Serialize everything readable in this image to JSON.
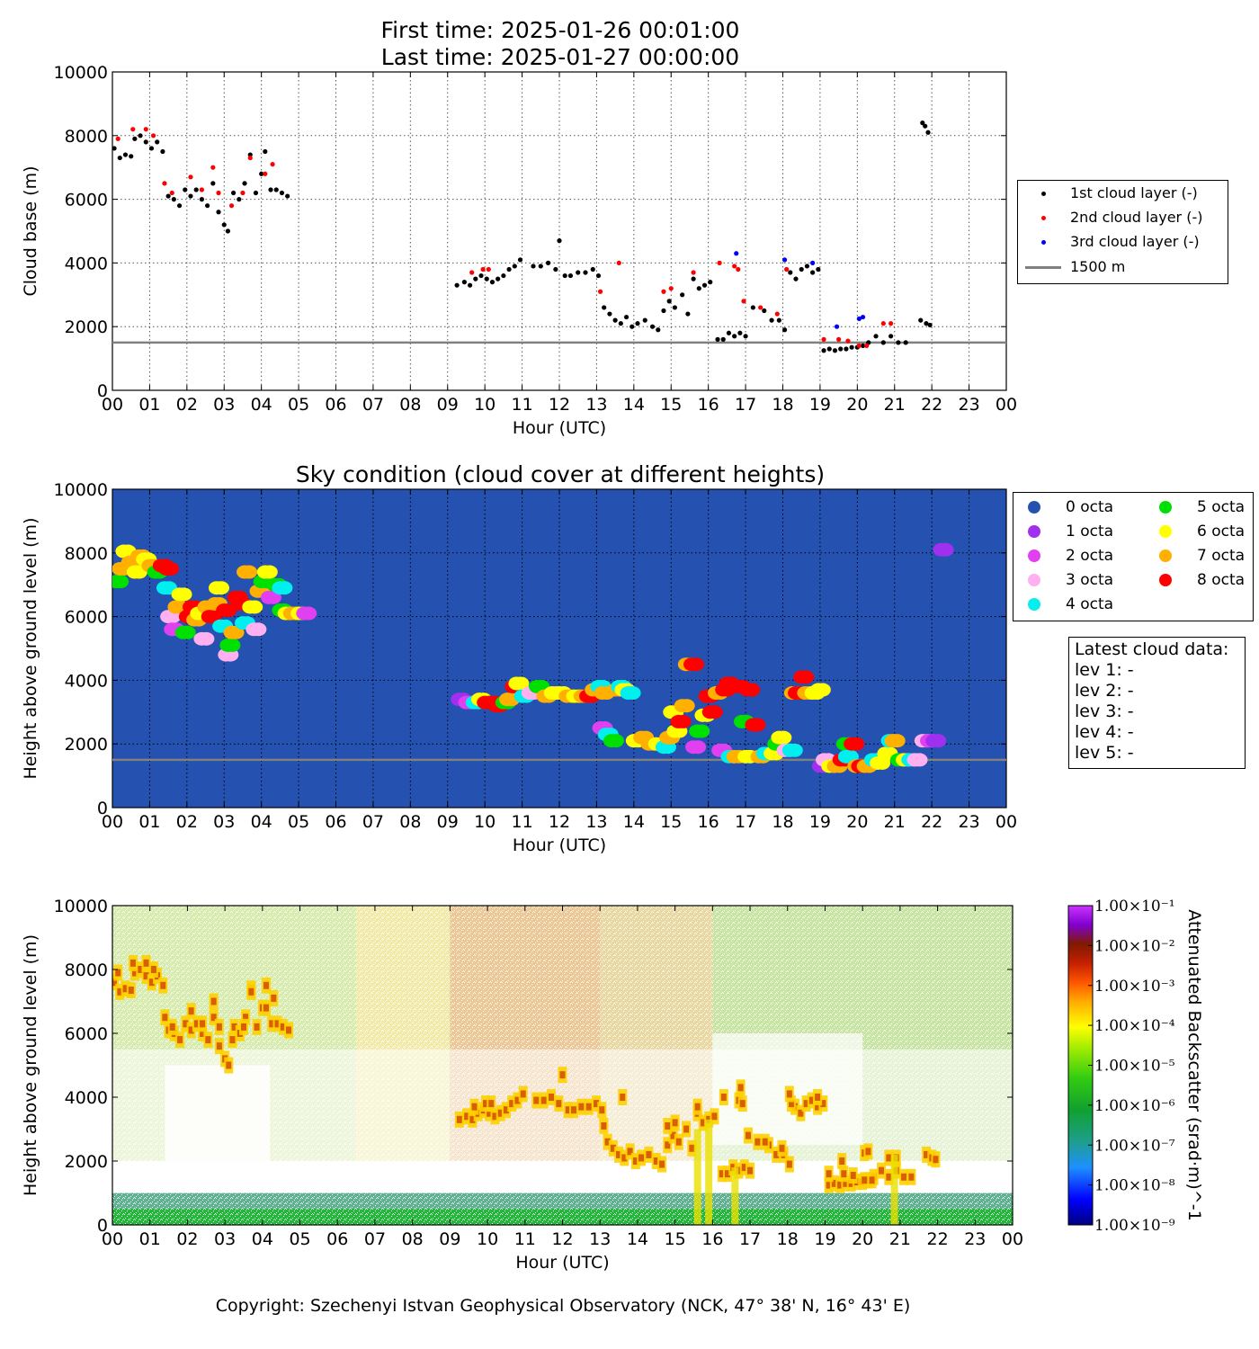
{
  "header": {
    "first_time": "First time: 2025-01-26 00:01:00",
    "last_time": "Last time: 2025-01-27 00:00:00"
  },
  "footer": {
    "copyright": "Copyright: Szechenyi Istvan Geophysical Observatory (NCK, 47° 38' N, 16° 43' E)"
  },
  "latest_cloud": {
    "title": "Latest cloud data:",
    "lines": [
      "lev 1: -",
      "lev 2: -",
      "lev 3: -",
      "lev 4: -",
      "lev 5: -"
    ]
  },
  "colors": {
    "first_layer": "#000000",
    "second_layer": "#ff0000",
    "third_layer": "#0000ff",
    "reference_line": "#808080",
    "sky_background": "#2552b0",
    "octa": [
      "#2552b0",
      "#a030f0",
      "#e040f0",
      "#ffb0f0",
      "#00f0f0",
      "#00e000",
      "#ffff00",
      "#ffb000",
      "#ff0000"
    ]
  },
  "chart_data": [
    {
      "type": "scatter",
      "xlabel": "Hour (UTC)",
      "ylabel": "Cloud base (m)",
      "xlim": [
        0,
        24
      ],
      "ylim": [
        0,
        10000
      ],
      "grid": true,
      "legend_position": "outside-right",
      "xticklabels": [
        "00",
        "01",
        "02",
        "03",
        "04",
        "05",
        "06",
        "07",
        "08",
        "09",
        "10",
        "11",
        "12",
        "13",
        "14",
        "15",
        "16",
        "17",
        "18",
        "19",
        "20",
        "21",
        "22",
        "23",
        "00"
      ],
      "yticks": [
        0,
        2000,
        4000,
        6000,
        8000,
        10000
      ],
      "reference_line": {
        "label": "1500 m",
        "y": 1500
      },
      "series": [
        {
          "name": "1st cloud layer (-)",
          "color": "#000000",
          "x": [
            0.05,
            0.2,
            0.35,
            0.5,
            0.6,
            0.75,
            0.9,
            1.05,
            1.2,
            1.35,
            1.5,
            1.65,
            1.8,
            1.95,
            2.1,
            2.25,
            2.4,
            2.55,
            2.7,
            2.85,
            3.0,
            3.1,
            3.25,
            3.4,
            3.55,
            3.7,
            3.85,
            4.0,
            4.1,
            4.25,
            4.4,
            4.55,
            4.7,
            9.25,
            9.45,
            9.6,
            9.75,
            9.9,
            10.05,
            10.2,
            10.35,
            10.5,
            10.65,
            10.8,
            10.95,
            11.3,
            11.5,
            11.7,
            11.9,
            12.0,
            12.15,
            12.3,
            12.5,
            12.7,
            12.9,
            13.05,
            13.2,
            13.35,
            13.5,
            13.65,
            13.8,
            13.95,
            14.1,
            14.3,
            14.5,
            14.65,
            14.8,
            14.95,
            15.1,
            15.3,
            15.45,
            15.6,
            15.75,
            15.9,
            16.05,
            16.25,
            16.4,
            16.55,
            16.7,
            16.85,
            17.0,
            17.2,
            17.5,
            17.7,
            17.9,
            18.05,
            18.2,
            18.35,
            18.5,
            18.65,
            18.8,
            18.95,
            19.1,
            19.25,
            19.4,
            19.55,
            19.7,
            19.85,
            20.0,
            20.15,
            20.3,
            20.5,
            20.7,
            20.9,
            21.1,
            21.3,
            21.7,
            21.85,
            21.95
          ],
          "values": [
            7600,
            7300,
            7400,
            7350,
            7900,
            8000,
            7800,
            7600,
            7800,
            7500,
            6100,
            6000,
            5800,
            6300,
            6100,
            6300,
            6000,
            5800,
            6500,
            5600,
            5200,
            5000,
            6200,
            6000,
            6500,
            7400,
            6200,
            6800,
            7500,
            6300,
            6300,
            6200,
            6100,
            3300,
            3400,
            3300,
            3500,
            3600,
            3500,
            3400,
            3500,
            3600,
            3800,
            3900,
            4100,
            3900,
            3900,
            4000,
            3800,
            4700,
            3600,
            3600,
            3700,
            3700,
            3800,
            3600,
            2600,
            2400,
            2200,
            2100,
            2300,
            2000,
            2100,
            2200,
            2000,
            1900,
            2500,
            2800,
            2600,
            3000,
            2400,
            3500,
            3200,
            3300,
            3400,
            1600,
            1600,
            1800,
            1700,
            1800,
            1700,
            2600,
            2500,
            2200,
            2200,
            1900,
            3700,
            3500,
            3800,
            3900,
            3700,
            3800,
            1250,
            1300,
            1250,
            1300,
            1300,
            1350,
            1350,
            1400,
            1500,
            1700,
            1500,
            1700,
            1500,
            1500,
            2200,
            2100,
            2050
          ]
        },
        {
          "name": "2nd cloud layer (-)",
          "color": "#ff0000",
          "x": [
            0.15,
            0.55,
            0.9,
            1.1,
            1.4,
            1.6,
            2.1,
            2.4,
            2.7,
            2.85,
            3.2,
            3.5,
            3.7,
            4.1,
            4.3,
            9.65,
            9.95,
            10.1,
            13.1,
            13.6,
            14.8,
            15.0,
            15.6,
            16.3,
            16.7,
            16.8,
            16.95,
            17.4,
            17.85,
            18.1,
            19.1,
            19.5,
            19.75,
            20.05,
            20.25,
            20.7,
            20.9
          ],
          "values": [
            7900,
            8200,
            8200,
            8000,
            6500,
            6200,
            6700,
            6300,
            7000,
            6200,
            5800,
            6200,
            7300,
            6800,
            7100,
            3700,
            3800,
            3800,
            3100,
            4000,
            3100,
            3200,
            3700,
            4000,
            3900,
            3800,
            2800,
            2600,
            2400,
            3800,
            1600,
            1600,
            1550,
            1400,
            1400,
            2100,
            2100
          ]
        },
        {
          "name": "3rd cloud layer (-)",
          "color": "#0000ff",
          "x": [
            16.75,
            18.05,
            18.8,
            19.45,
            20.05,
            20.15
          ],
          "values": [
            4300,
            4100,
            4000,
            2000,
            2250,
            2300
          ]
        }
      ],
      "outlier_points": {
        "x": [
          21.75,
          21.82,
          21.9
        ],
        "values": [
          8400,
          8300,
          8100
        ]
      }
    },
    {
      "type": "scatter",
      "title": "Sky condition (cloud cover at different heights)",
      "xlabel": "Hour (UTC)",
      "ylabel": "Height above ground level (m)",
      "xlim": [
        0,
        24
      ],
      "ylim": [
        0,
        10000
      ],
      "grid": true,
      "legend_position": "outside-right",
      "xticklabels": [
        "00",
        "01",
        "02",
        "03",
        "04",
        "05",
        "06",
        "07",
        "08",
        "09",
        "10",
        "11",
        "12",
        "13",
        "14",
        "15",
        "16",
        "17",
        "18",
        "19",
        "20",
        "21",
        "22",
        "23",
        "00"
      ],
      "yticks": [
        0,
        2000,
        4000,
        6000,
        8000,
        10000
      ],
      "reference_line": {
        "y": 1500
      },
      "categories": [
        "0 octa",
        "1 octa",
        "2 octa",
        "3 octa",
        "4 octa",
        "5 octa",
        "6 octa",
        "7 octa",
        "8 octa"
      ],
      "points": [
        [
          0.1,
          7100,
          5
        ],
        [
          0.2,
          7500,
          7
        ],
        [
          0.3,
          8050,
          6
        ],
        [
          0.45,
          7700,
          7
        ],
        [
          0.6,
          7400,
          6
        ],
        [
          0.7,
          7900,
          7
        ],
        [
          0.85,
          7800,
          6
        ],
        [
          1.0,
          7600,
          7
        ],
        [
          1.15,
          7400,
          5
        ],
        [
          1.3,
          7600,
          8
        ],
        [
          1.45,
          7500,
          8
        ],
        [
          1.4,
          6900,
          4
        ],
        [
          1.5,
          6000,
          3
        ],
        [
          1.6,
          5600,
          2
        ],
        [
          1.7,
          6300,
          7
        ],
        [
          1.8,
          6700,
          6
        ],
        [
          1.9,
          5500,
          5
        ],
        [
          2.0,
          6000,
          8
        ],
        [
          2.1,
          6300,
          8
        ],
        [
          2.2,
          5900,
          7
        ],
        [
          2.3,
          6100,
          6
        ],
        [
          2.4,
          5300,
          3
        ],
        [
          2.5,
          6300,
          7
        ],
        [
          2.6,
          6000,
          8
        ],
        [
          2.75,
          6400,
          7
        ],
        [
          2.8,
          6900,
          6
        ],
        [
          2.9,
          5700,
          4
        ],
        [
          3.0,
          6200,
          8
        ],
        [
          3.05,
          4800,
          3
        ],
        [
          3.1,
          5100,
          5
        ],
        [
          3.2,
          5500,
          7
        ],
        [
          3.3,
          6600,
          8
        ],
        [
          3.4,
          6400,
          8
        ],
        [
          3.5,
          5800,
          4
        ],
        [
          3.55,
          7400,
          7
        ],
        [
          3.7,
          6300,
          6
        ],
        [
          3.8,
          5600,
          3
        ],
        [
          3.9,
          6800,
          7
        ],
        [
          4.0,
          7100,
          5
        ],
        [
          4.1,
          7400,
          6
        ],
        [
          4.2,
          6600,
          2
        ],
        [
          4.35,
          7000,
          5
        ],
        [
          4.5,
          6900,
          4
        ],
        [
          4.5,
          6200,
          5
        ],
        [
          4.65,
          6100,
          6
        ],
        [
          4.8,
          6100,
          7
        ],
        [
          5.0,
          6100,
          6
        ],
        [
          5.15,
          6100,
          2
        ],
        [
          9.3,
          3400,
          1
        ],
        [
          9.5,
          3300,
          2
        ],
        [
          9.7,
          3300,
          4
        ],
        [
          9.85,
          3400,
          6
        ],
        [
          10.0,
          3300,
          8
        ],
        [
          10.15,
          3300,
          8
        ],
        [
          10.3,
          3200,
          8
        ],
        [
          10.5,
          3300,
          5
        ],
        [
          10.6,
          3400,
          7
        ],
        [
          10.75,
          3800,
          8
        ],
        [
          10.85,
          3900,
          6
        ],
        [
          11.0,
          3500,
          4
        ],
        [
          11.2,
          3600,
          3
        ],
        [
          11.4,
          3800,
          5
        ],
        [
          11.6,
          3500,
          7
        ],
        [
          11.8,
          3600,
          6
        ],
        [
          12.0,
          3600,
          6
        ],
        [
          12.2,
          3500,
          7
        ],
        [
          12.4,
          3500,
          6
        ],
        [
          12.6,
          3500,
          7
        ],
        [
          12.75,
          3500,
          8
        ],
        [
          12.9,
          3700,
          7
        ],
        [
          13.05,
          3800,
          4
        ],
        [
          13.15,
          3600,
          7
        ],
        [
          13.1,
          2500,
          2
        ],
        [
          13.25,
          2300,
          4
        ],
        [
          13.4,
          2100,
          5
        ],
        [
          13.5,
          3700,
          7
        ],
        [
          13.6,
          3800,
          4
        ],
        [
          13.7,
          3700,
          6
        ],
        [
          13.85,
          3600,
          4
        ],
        [
          14.0,
          2100,
          6
        ],
        [
          14.2,
          2200,
          7
        ],
        [
          14.4,
          2000,
          7
        ],
        [
          14.6,
          2000,
          6
        ],
        [
          14.8,
          1900,
          4
        ],
        [
          14.9,
          2200,
          7
        ],
        [
          15.0,
          3000,
          6
        ],
        [
          15.1,
          2400,
          6
        ],
        [
          15.2,
          2700,
          8
        ],
        [
          15.3,
          3200,
          7
        ],
        [
          15.4,
          4500,
          7
        ],
        [
          15.55,
          4500,
          8
        ],
        [
          15.6,
          1900,
          2
        ],
        [
          15.7,
          2400,
          5
        ],
        [
          15.85,
          2900,
          6
        ],
        [
          15.95,
          3500,
          8
        ],
        [
          16.05,
          3000,
          8
        ],
        [
          16.2,
          3600,
          7
        ],
        [
          16.3,
          1800,
          2
        ],
        [
          16.4,
          3700,
          8
        ],
        [
          16.5,
          3900,
          8
        ],
        [
          16.55,
          1600,
          4
        ],
        [
          16.7,
          1600,
          7
        ],
        [
          16.8,
          3800,
          8
        ],
        [
          16.9,
          2700,
          5
        ],
        [
          17.0,
          1600,
          6
        ],
        [
          17.05,
          3700,
          8
        ],
        [
          17.2,
          2600,
          8
        ],
        [
          17.35,
          1600,
          7
        ],
        [
          17.5,
          1700,
          4
        ],
        [
          17.7,
          1700,
          6
        ],
        [
          17.8,
          2000,
          5
        ],
        [
          17.9,
          2200,
          6
        ],
        [
          18.05,
          1800,
          3
        ],
        [
          18.2,
          1800,
          4
        ],
        [
          18.25,
          3600,
          7
        ],
        [
          18.35,
          3600,
          8
        ],
        [
          18.5,
          4100,
          8
        ],
        [
          18.6,
          3600,
          7
        ],
        [
          18.8,
          3600,
          6
        ],
        [
          18.95,
          3700,
          6
        ],
        [
          19.0,
          1300,
          1
        ],
        [
          19.1,
          1500,
          3
        ],
        [
          19.25,
          1300,
          6
        ],
        [
          19.4,
          1300,
          7
        ],
        [
          19.55,
          1500,
          8
        ],
        [
          19.65,
          2000,
          5
        ],
        [
          19.7,
          1600,
          4
        ],
        [
          19.85,
          2000,
          8
        ],
        [
          19.95,
          1300,
          7
        ],
        [
          20.05,
          1300,
          8
        ],
        [
          20.2,
          1300,
          7
        ],
        [
          20.4,
          1500,
          4
        ],
        [
          20.55,
          1400,
          6
        ],
        [
          20.75,
          1700,
          6
        ],
        [
          20.85,
          2100,
          4
        ],
        [
          20.95,
          2100,
          7
        ],
        [
          21.1,
          1500,
          5
        ],
        [
          21.25,
          1500,
          6
        ],
        [
          21.4,
          1500,
          4
        ],
        [
          21.55,
          1500,
          3
        ],
        [
          21.75,
          2100,
          3
        ],
        [
          21.9,
          2100,
          2
        ],
        [
          22.05,
          2100,
          1
        ],
        [
          22.25,
          8100,
          1
        ]
      ]
    },
    {
      "type": "heatmap",
      "xlabel": "Hour (UTC)",
      "ylabel": "Height above ground level (m)",
      "colorbar_label": "Attenuated Backscatter (srad·m)^-1",
      "colorbar_ticks": [
        "1.00×10⁻⁹",
        "1.00×10⁻⁸",
        "1.00×10⁻⁷",
        "1.00×10⁻⁶",
        "1.00×10⁻⁵",
        "1.00×10⁻⁴",
        "1.00×10⁻³",
        "1.00×10⁻²",
        "1.00×10⁻¹"
      ],
      "colorbar_scale": "log",
      "xlim": [
        0,
        24
      ],
      "ylim": [
        0,
        10000
      ],
      "xticklabels": [
        "00",
        "01",
        "02",
        "03",
        "04",
        "05",
        "06",
        "07",
        "08",
        "09",
        "10",
        "11",
        "12",
        "13",
        "14",
        "15",
        "16",
        "17",
        "18",
        "19",
        "20",
        "21",
        "22",
        "23",
        "00"
      ],
      "yticks": [
        0,
        2000,
        4000,
        6000,
        8000,
        10000
      ]
    }
  ]
}
